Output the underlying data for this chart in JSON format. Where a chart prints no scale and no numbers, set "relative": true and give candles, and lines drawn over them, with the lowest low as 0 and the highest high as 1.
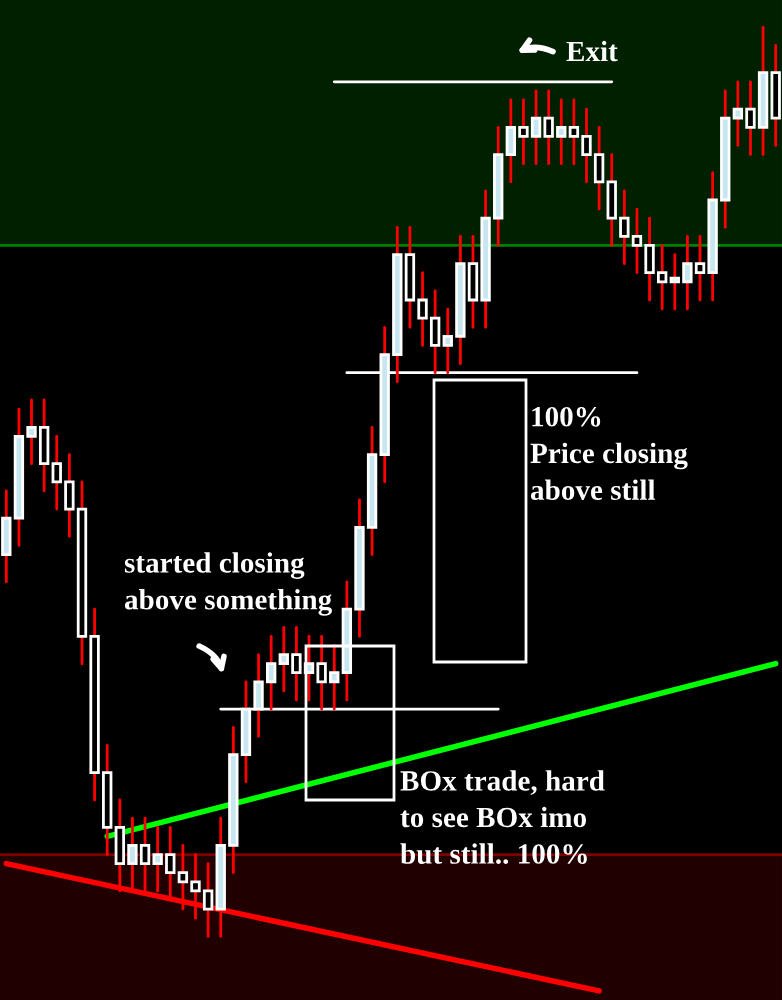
{
  "chart_data": {
    "type": "candlestick",
    "relative": true,
    "color": "#ffffff",
    "categories": [
      null,
      null,
      null,
      null,
      null,
      null,
      null,
      null,
      null,
      null,
      null,
      null,
      null,
      null,
      null,
      null,
      null,
      null,
      null,
      null,
      null,
      null,
      null,
      null,
      null,
      null,
      null,
      null,
      null,
      null,
      null,
      null,
      null,
      null,
      null,
      null,
      null,
      null,
      null,
      null,
      null,
      null,
      null,
      null,
      null,
      null,
      null,
      null,
      null,
      null,
      null,
      null,
      null,
      null,
      null,
      null,
      null,
      null,
      null,
      null,
      null,
      null
    ],
    "ohlc": [
      [
        0.42,
        0.49,
        0.39,
        0.46
      ],
      [
        0.46,
        0.58,
        0.43,
        0.55
      ],
      [
        0.55,
        0.59,
        0.52,
        0.56
      ],
      [
        0.56,
        0.59,
        0.49,
        0.52
      ],
      [
        0.52,
        0.55,
        0.47,
        0.5
      ],
      [
        0.5,
        0.53,
        0.44,
        0.47
      ],
      [
        0.47,
        0.5,
        0.3,
        0.33
      ],
      [
        0.33,
        0.36,
        0.15,
        0.18
      ],
      [
        0.18,
        0.21,
        0.09,
        0.12
      ],
      [
        0.12,
        0.15,
        0.05,
        0.08
      ],
      [
        0.08,
        0.13,
        0.05,
        0.1
      ],
      [
        0.1,
        0.13,
        0.05,
        0.08
      ],
      [
        0.08,
        0.12,
        0.05,
        0.09
      ],
      [
        0.09,
        0.12,
        0.04,
        0.07
      ],
      [
        0.07,
        0.1,
        0.03,
        0.06
      ],
      [
        0.06,
        0.09,
        0.02,
        0.05
      ],
      [
        0.05,
        0.08,
        0.0,
        0.03
      ],
      [
        0.03,
        0.13,
        0.0,
        0.1
      ],
      [
        0.1,
        0.23,
        0.07,
        0.2
      ],
      [
        0.2,
        0.28,
        0.17,
        0.25
      ],
      [
        0.25,
        0.31,
        0.22,
        0.28
      ],
      [
        0.28,
        0.33,
        0.25,
        0.3
      ],
      [
        0.3,
        0.34,
        0.27,
        0.31
      ],
      [
        0.31,
        0.34,
        0.26,
        0.29
      ],
      [
        0.29,
        0.33,
        0.26,
        0.3
      ],
      [
        0.3,
        0.33,
        0.25,
        0.28
      ],
      [
        0.28,
        0.32,
        0.25,
        0.29
      ],
      [
        0.29,
        0.39,
        0.26,
        0.36
      ],
      [
        0.36,
        0.48,
        0.33,
        0.45
      ],
      [
        0.45,
        0.56,
        0.42,
        0.53
      ],
      [
        0.53,
        0.67,
        0.5,
        0.64
      ],
      [
        0.64,
        0.78,
        0.61,
        0.75
      ],
      [
        0.75,
        0.78,
        0.67,
        0.7
      ],
      [
        0.7,
        0.73,
        0.65,
        0.68
      ],
      [
        0.68,
        0.71,
        0.62,
        0.65
      ],
      [
        0.65,
        0.69,
        0.62,
        0.66
      ],
      [
        0.66,
        0.77,
        0.63,
        0.74
      ],
      [
        0.74,
        0.77,
        0.67,
        0.7
      ],
      [
        0.7,
        0.82,
        0.67,
        0.79
      ],
      [
        0.79,
        0.89,
        0.76,
        0.86
      ],
      [
        0.86,
        0.92,
        0.83,
        0.89
      ],
      [
        0.89,
        0.92,
        0.85,
        0.88
      ],
      [
        0.88,
        0.93,
        0.85,
        0.9
      ],
      [
        0.9,
        0.93,
        0.85,
        0.88
      ],
      [
        0.88,
        0.92,
        0.85,
        0.89
      ],
      [
        0.89,
        0.92,
        0.85,
        0.88
      ],
      [
        0.88,
        0.91,
        0.83,
        0.86
      ],
      [
        0.86,
        0.89,
        0.8,
        0.83
      ],
      [
        0.83,
        0.86,
        0.76,
        0.79
      ],
      [
        0.79,
        0.82,
        0.74,
        0.77
      ],
      [
        0.77,
        0.8,
        0.73,
        0.76
      ],
      [
        0.76,
        0.79,
        0.7,
        0.73
      ],
      [
        0.73,
        0.76,
        0.69,
        0.72
      ],
      [
        0.72,
        0.75,
        0.69,
        0.72
      ],
      [
        0.72,
        0.77,
        0.69,
        0.74
      ],
      [
        0.74,
        0.77,
        0.7,
        0.73
      ],
      [
        0.73,
        0.84,
        0.7,
        0.81
      ],
      [
        0.81,
        0.93,
        0.78,
        0.9
      ],
      [
        0.9,
        0.94,
        0.87,
        0.91
      ],
      [
        0.91,
        0.94,
        0.86,
        0.89
      ],
      [
        0.89,
        1.0,
        0.86,
        0.95
      ],
      [
        0.95,
        0.98,
        0.87,
        0.9
      ]
    ],
    "series": [
      {
        "type": "line",
        "color": "#ffffff",
        "values": [
          null,
          null,
          null,
          null,
          null,
          null,
          null,
          null,
          null,
          null,
          null,
          null,
          null,
          null,
          null,
          null,
          null,
          null,
          null,
          null,
          null,
          null,
          null,
          null,
          null,
          null,
          0.94,
          null,
          null,
          null,
          null,
          null,
          null,
          null,
          null,
          null,
          null,
          null,
          null,
          null,
          null,
          null,
          null,
          null,
          null,
          null,
          null,
          null,
          0.94,
          null,
          null,
          null,
          null,
          null,
          null,
          null,
          null,
          null,
          null,
          null,
          null,
          null
        ]
      },
      {
        "type": "line",
        "color": "#ffffff",
        "values": [
          null,
          null,
          null,
          null,
          null,
          null,
          null,
          null,
          null,
          null,
          null,
          null,
          null,
          null,
          null,
          null,
          null,
          null,
          null,
          null,
          null,
          null,
          null,
          null,
          null,
          null,
          null,
          0.62,
          null,
          null,
          null,
          null,
          null,
          null,
          null,
          null,
          null,
          null,
          null,
          null,
          null,
          null,
          null,
          null,
          null,
          null,
          null,
          null,
          null,
          null,
          0.62,
          null,
          null,
          null,
          null,
          null,
          null,
          null,
          null,
          null,
          null,
          null
        ]
      },
      {
        "type": "line",
        "color": "#ffffff",
        "values": [
          null,
          null,
          null,
          null,
          null,
          null,
          null,
          null,
          null,
          null,
          null,
          null,
          null,
          null,
          null,
          null,
          null,
          0.25,
          null,
          null,
          null,
          null,
          null,
          null,
          null,
          null,
          null,
          null,
          null,
          null,
          null,
          null,
          null,
          null,
          null,
          null,
          null,
          null,
          null,
          0.25,
          null,
          null,
          null,
          null,
          null,
          null,
          null,
          null,
          null,
          null,
          null,
          null,
          null,
          null,
          null,
          null,
          null,
          null,
          null,
          null,
          null,
          null
        ]
      },
      {
        "type": "line",
        "color": "#00ff00",
        "values": [
          null,
          null,
          null,
          null,
          null,
          null,
          null,
          null,
          0.11,
          null,
          null,
          null,
          null,
          null,
          null,
          null,
          null,
          null,
          null,
          null,
          null,
          null,
          null,
          null,
          null,
          null,
          null,
          null,
          null,
          null,
          null,
          null,
          null,
          null,
          null,
          null,
          null,
          null,
          null,
          null,
          null,
          null,
          null,
          null,
          null,
          null,
          null,
          null,
          null,
          null,
          null,
          null,
          null,
          null,
          null,
          null,
          null,
          null,
          null,
          null,
          null,
          0.3
        ]
      },
      {
        "type": "line",
        "color": "#ff0000",
        "values": [
          0.08,
          null,
          null,
          null,
          null,
          null,
          null,
          null,
          null,
          null,
          null,
          null,
          null,
          null,
          null,
          null,
          null,
          null,
          null,
          null,
          null,
          null,
          null,
          null,
          null,
          null,
          null,
          null,
          null,
          null,
          null,
          null,
          null,
          null,
          null,
          null,
          null,
          null,
          null,
          null,
          null,
          null,
          null,
          null,
          null,
          null,
          null,
          -0.06,
          null,
          null,
          null,
          null,
          null,
          null,
          null,
          null,
          null,
          null,
          null,
          null,
          null,
          null
        ]
      }
    ],
    "bands": [
      {
        "axis": "y",
        "from": 0.76,
        "to": 1.03,
        "color": "#002000"
      },
      {
        "axis": "y",
        "from": -0.07,
        "to": 0.09,
        "color": "#200000"
      }
    ],
    "ref_lines": [
      {
        "axis": "y",
        "value": 0.76,
        "color": "#008000"
      },
      {
        "axis": "y",
        "value": 0.09,
        "color": "#800000"
      }
    ],
    "annotations": [
      "Exit",
      "started closing\nabove something",
      "100%\nPrice closing\nabove still",
      "BOx trade, hard\nto see BOx imo\nbut still.. 100%"
    ]
  }
}
